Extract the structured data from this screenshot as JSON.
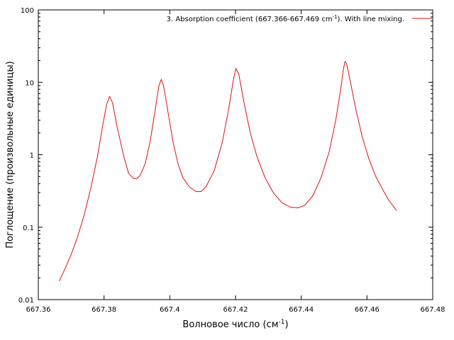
{
  "chart_data": {
    "type": "line",
    "title": "",
    "xlabel": "Волновое число (см",
    "xlabel_sup": "-1",
    "xlabel_end": ")",
    "ylabel": "Поглощение (произвольные единицы)",
    "xlim": [
      667.36,
      667.48
    ],
    "ylim": [
      0.01,
      100
    ],
    "yscale": "log",
    "grid": false,
    "legend_position": "top-right",
    "x_ticks": [
      667.36,
      667.38,
      667.4,
      667.42,
      667.44,
      667.46,
      667.48
    ],
    "x_tick_labels": [
      "667.36",
      "667.38",
      "667.4",
      "667.42",
      "667.44",
      "667.46",
      "667.48"
    ],
    "y_ticks": [
      0.01,
      0.1,
      1,
      10,
      100
    ],
    "y_tick_labels": [
      "0.01",
      "0.1",
      "1",
      "10",
      "100"
    ],
    "legend": {
      "text_main": "3. Absorption coefficient (667.366-667.469 cm",
      "text_sup": "-1",
      "text_end": "). With line mixing."
    },
    "series": [
      {
        "name": "3. Absorption coefficient (667.366-667.469 cm-1). With line mixing.",
        "color": "#dd1111",
        "points": [
          [
            667.3664,
            0.018
          ],
          [
            667.368,
            0.026
          ],
          [
            667.37,
            0.042
          ],
          [
            667.372,
            0.075
          ],
          [
            667.374,
            0.15
          ],
          [
            667.376,
            0.35
          ],
          [
            667.378,
            0.95
          ],
          [
            667.3795,
            2.4
          ],
          [
            667.3808,
            5.0
          ],
          [
            667.3817,
            6.4
          ],
          [
            667.3826,
            5.2
          ],
          [
            667.384,
            2.4
          ],
          [
            667.386,
            0.95
          ],
          [
            667.3875,
            0.55
          ],
          [
            667.389,
            0.47
          ],
          [
            667.39,
            0.47
          ],
          [
            667.391,
            0.52
          ],
          [
            667.3925,
            0.75
          ],
          [
            667.394,
            1.5
          ],
          [
            667.3955,
            4.0
          ],
          [
            667.3967,
            9.0
          ],
          [
            667.3974,
            11.0
          ],
          [
            667.3981,
            9.0
          ],
          [
            667.3995,
            3.8
          ],
          [
            667.401,
            1.5
          ],
          [
            667.4025,
            0.75
          ],
          [
            667.404,
            0.48
          ],
          [
            667.406,
            0.36
          ],
          [
            667.408,
            0.31
          ],
          [
            667.4095,
            0.31
          ],
          [
            667.411,
            0.36
          ],
          [
            667.4135,
            0.6
          ],
          [
            667.416,
            1.5
          ],
          [
            667.418,
            4.5
          ],
          [
            667.4193,
            10.5
          ],
          [
            667.4201,
            15.5
          ],
          [
            667.421,
            13.0
          ],
          [
            667.4225,
            5.5
          ],
          [
            667.4245,
            2.0
          ],
          [
            667.4265,
            0.95
          ],
          [
            667.429,
            0.48
          ],
          [
            667.4315,
            0.3
          ],
          [
            667.434,
            0.22
          ],
          [
            667.4365,
            0.19
          ],
          [
            667.439,
            0.185
          ],
          [
            667.441,
            0.2
          ],
          [
            667.4435,
            0.27
          ],
          [
            667.446,
            0.48
          ],
          [
            667.4485,
            1.1
          ],
          [
            667.4505,
            3.0
          ],
          [
            667.452,
            8.0
          ],
          [
            667.4528,
            15.0
          ],
          [
            667.4533,
            19.5
          ],
          [
            667.4538,
            18.0
          ],
          [
            667.4548,
            11.0
          ],
          [
            667.4565,
            4.5
          ],
          [
            667.4585,
            1.8
          ],
          [
            667.4605,
            0.9
          ],
          [
            667.4625,
            0.52
          ],
          [
            667.4645,
            0.35
          ],
          [
            667.4665,
            0.24
          ],
          [
            667.469,
            0.17
          ]
        ]
      }
    ]
  }
}
